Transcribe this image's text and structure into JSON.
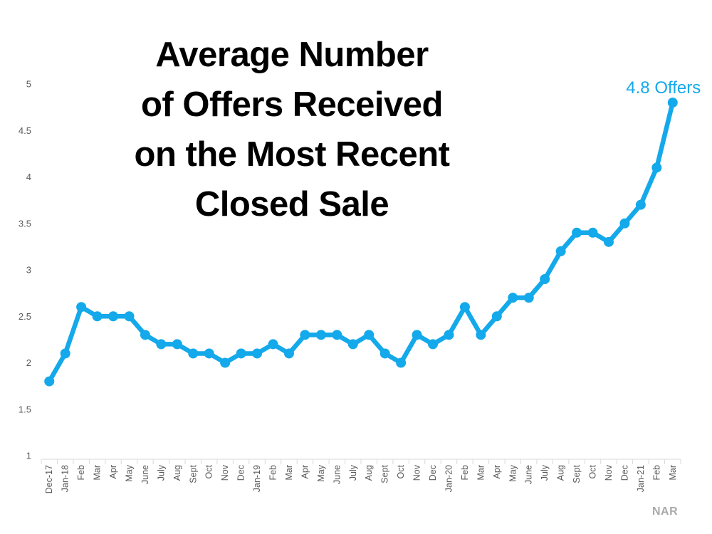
{
  "page": {
    "source_label": "NAR"
  },
  "chart_data": {
    "type": "line",
    "title": "Average Number of Offers Received on the Most Recent Closed Sale",
    "title_lines": [
      "Average Number",
      "of Offers Received",
      "on the Most Recent",
      "Closed Sale"
    ],
    "xlabel": "",
    "ylabel": "",
    "categories": [
      "Dec-17",
      "Jan-18",
      "Feb",
      "Mar",
      "Apr",
      "May",
      "June",
      "July",
      "Aug",
      "Sept",
      "Oct",
      "Nov",
      "Dec",
      "Jan-19",
      "Feb",
      "Mar",
      "Apr",
      "May",
      "June",
      "July",
      "Aug",
      "Sept",
      "Oct",
      "Nov",
      "Dec",
      "Jan-20",
      "Feb",
      "Mar",
      "Apr",
      "May",
      "June",
      "July",
      "Aug",
      "Sept",
      "Oct",
      "Nov",
      "Dec",
      "Jan-21",
      "Feb",
      "Mar"
    ],
    "values": [
      1.8,
      2.1,
      2.6,
      2.5,
      2.5,
      2.5,
      2.3,
      2.2,
      2.2,
      2.1,
      2.1,
      2.0,
      2.1,
      2.1,
      2.2,
      2.1,
      2.3,
      2.3,
      2.3,
      2.2,
      2.3,
      2.1,
      2.0,
      2.3,
      2.2,
      2.3,
      2.6,
      2.3,
      2.5,
      2.7,
      2.7,
      2.9,
      3.2,
      3.4,
      3.4,
      3.3,
      3.5,
      3.7,
      4.1,
      4.8
    ],
    "ylim": [
      1,
      5
    ],
    "ytick_step": 0.5,
    "ytick_labels": [
      "5",
      "4.5",
      "4",
      "3.5",
      "3",
      "2.5",
      "2",
      "1.5",
      "1"
    ],
    "grid": false,
    "legend": "none",
    "annotation": {
      "text": "4.8 Offers",
      "point_index": 39
    },
    "colors": {
      "line": "#14a9ea",
      "marker": "#14a9ea",
      "annotation": "#14a9ea",
      "axis_line": "#d9d9d9",
      "tick_label": "#595959",
      "title": "#000000",
      "source": "#a9a9a9"
    }
  }
}
